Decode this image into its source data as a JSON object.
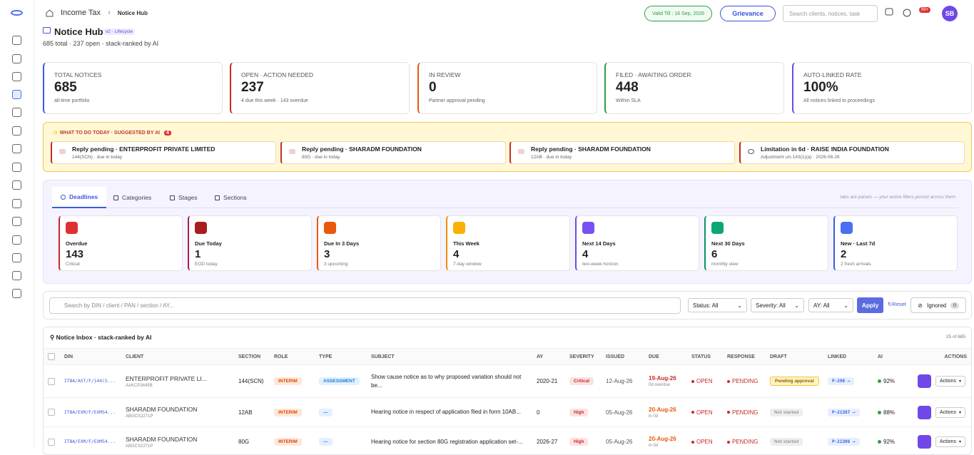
{
  "header": {
    "breadcrumb": [
      "Income Tax",
      "Notice Hub"
    ],
    "valid": "Valid Till : 16 Sep, 2026",
    "grievance": "Grievance",
    "search": "Search clients, notices, task",
    "badge": "99+",
    "avatar": "SB"
  },
  "page": {
    "title": "Notice Hub",
    "tag": "v2 · Lifecycle",
    "subtitle": "685 total · 237 open · stack-ranked by AI"
  },
  "stats": [
    {
      "label": "TOTAL NOTICES",
      "value": "685",
      "note": "all-time portfolio"
    },
    {
      "label": "OPEN · ACTION NEEDED",
      "value": "237",
      "note": "4 due this week · 143 overdue"
    },
    {
      "label": "IN REVIEW",
      "value": "0",
      "note": "Partner approval pending"
    },
    {
      "label": "FILED · AWAITING ORDER",
      "value": "448",
      "note": "Within SLA"
    },
    {
      "label": "AUTO-LINKED RATE",
      "value": "100%",
      "note": "All notices linked to proceedings"
    }
  ],
  "today": {
    "title": "WHAT TO DO TODAY · SUGGESTED BY AI",
    "count": "4",
    "items": [
      {
        "title": "Reply pending · ENTERPROFIT PRIVATE LIMITED",
        "sub": "144(SCN) · due in today"
      },
      {
        "title": "Reply pending · SHARADM FOUNDATION",
        "sub": "80G · due in today"
      },
      {
        "title": "Reply pending · SHARADM FOUNDATION",
        "sub": "12AB · due in today"
      },
      {
        "title": "Limitation in 6d · RAISE INDIA FOUNDATION",
        "sub": "Adjustment u/s 143(1)(a) · 2026-08-26"
      }
    ]
  },
  "tabs": {
    "items": [
      "Deadlines",
      "Categories",
      "Stages",
      "Sections"
    ],
    "hint": "tabs are panels — your active filters persist across them"
  },
  "deadlines": [
    {
      "label": "Overdue",
      "value": "143",
      "note": "Critical"
    },
    {
      "label": "Due Today",
      "value": "1",
      "note": "EOD today"
    },
    {
      "label": "Due In 3 Days",
      "value": "3",
      "note": "3 upcoming"
    },
    {
      "label": "This Week",
      "value": "4",
      "note": "7-day window"
    },
    {
      "label": "Next 14 Days",
      "value": "4",
      "note": "two-week horizon"
    },
    {
      "label": "Next 30 Days",
      "value": "6",
      "note": "monthly view"
    },
    {
      "label": "New · Last 7d",
      "value": "2",
      "note": "2 fresh arrivals"
    }
  ],
  "filters": {
    "search": "Search by DIN / client / PAN / section / AY...",
    "status": "Status: All",
    "severity": "Severity: All",
    "ay": "AY: All",
    "apply": "Apply",
    "reset": "Reset",
    "ignored": "Ignored",
    "ignored_count": "0"
  },
  "inbox": {
    "title": "Notice Inbox · stack-ranked by AI",
    "count": "25 of 685",
    "columns": [
      "DIN",
      "CLIENT",
      "SECTION",
      "ROLE",
      "TYPE",
      "SUBJECT",
      "AY",
      "SEVERITY",
      "ISSUED",
      "DUE",
      "STATUS",
      "RESPONSE",
      "DRAFT",
      "LINKED",
      "AI",
      "ACTIONS"
    ],
    "rows": [
      {
        "din": "ITBA/AST/F/144(S...",
        "client": "ENTERPROFIT PRIVATE LI...",
        "pan": "AAKCP3445B",
        "section": "144(SCN)",
        "role": "INTERIM",
        "type": "ASSESSMENT",
        "subject": "Show cause notice as to why proposed variation should not be...",
        "ay": "2020-21",
        "severity": "Critical",
        "issued": "12-Aug-26",
        "due": "19-Aug-26",
        "due_note": "0d overdue",
        "status": "OPEN",
        "response": "PENDING",
        "draft": "Pending approval",
        "linked": "P-290 →",
        "ai": "92%",
        "action": "Actions"
      },
      {
        "din": "ITBA/EXM/F/EXM54...",
        "client": "SHARADM FOUNDATION",
        "pan": "ABGCS2271P",
        "section": "12AB",
        "role": "INTERIM",
        "type": "—",
        "subject": "Hearing notice in respect of application filed in form 10AB...",
        "ay": "0",
        "severity": "High",
        "issued": "05-Aug-26",
        "due": "20-Aug-26",
        "due_note": "in 0d",
        "status": "OPEN",
        "response": "PENDING",
        "draft": "Not started",
        "linked": "P-21387 →",
        "ai": "88%",
        "action": "Actions"
      },
      {
        "din": "ITBA/EXM/F/EXM54...",
        "client": "SHARADM FOUNDATION",
        "pan": "ABGCS2271P",
        "section": "80G",
        "role": "INTERIM",
        "type": "—",
        "subject": "Hearing notice for section 80G registration application set-...",
        "ay": "2026-27",
        "severity": "High",
        "issued": "05-Aug-26",
        "due": "20-Aug-26",
        "due_note": "in 0d",
        "status": "OPEN",
        "response": "PENDING",
        "draft": "Not started",
        "linked": "P-21386 →",
        "ai": "92%",
        "action": "Actions"
      }
    ]
  }
}
